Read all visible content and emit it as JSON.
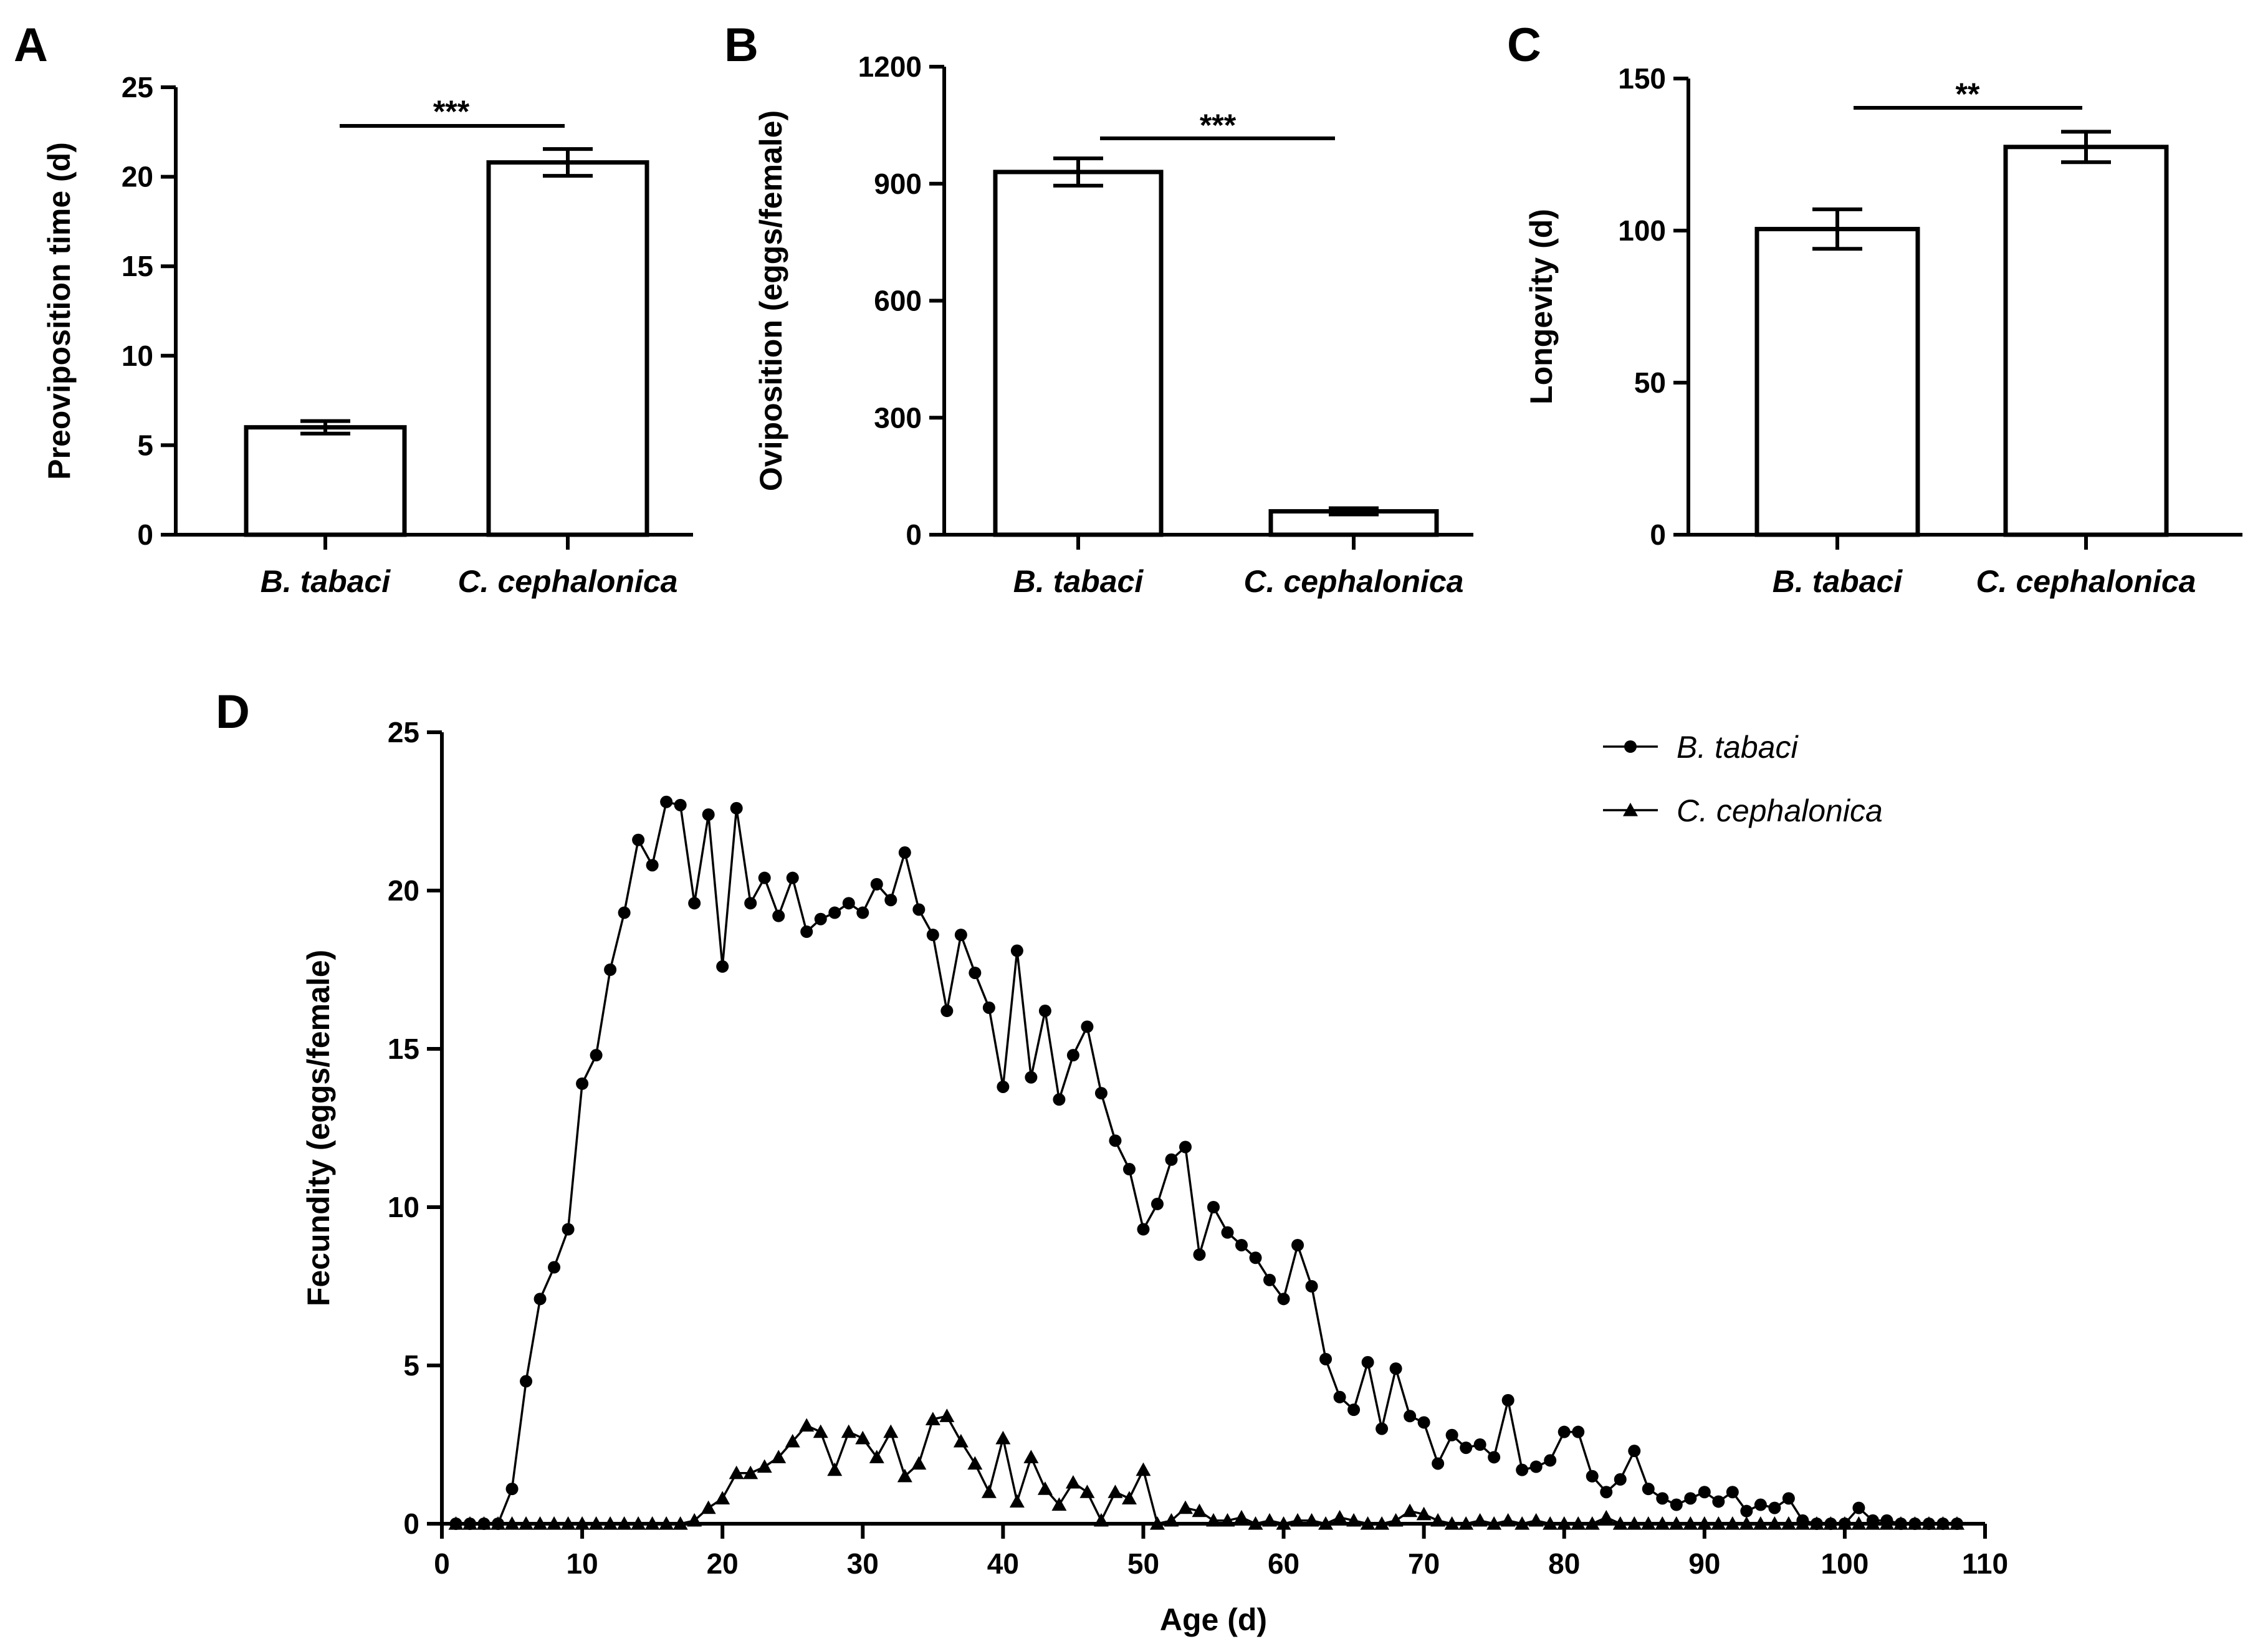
{
  "chart_data": [
    {
      "panel": "A",
      "type": "bar",
      "categories": [
        "B. tabaci",
        "C. cephalonica"
      ],
      "values": [
        6.0,
        20.8
      ],
      "errors": [
        0.35,
        0.75
      ],
      "ylabel": "Preoviposition time (d)",
      "xlabel": "",
      "ylim": [
        0,
        25
      ],
      "yticks": [
        0,
        5,
        10,
        15,
        20,
        25
      ],
      "significance": "***"
    },
    {
      "panel": "B",
      "type": "bar",
      "categories": [
        "B. tabaci",
        "C. cephalonica"
      ],
      "values": [
        930,
        60
      ],
      "errors": [
        35,
        8
      ],
      "ylabel": "Oviposition (eggs/female)",
      "xlabel": "",
      "ylim": [
        0,
        1200
      ],
      "yticks": [
        0,
        300,
        600,
        900,
        1200
      ],
      "significance": "***"
    },
    {
      "panel": "C",
      "type": "bar",
      "categories": [
        "B. tabaci",
        "C. cephalonica"
      ],
      "values": [
        100.5,
        127.5
      ],
      "errors": [
        6.5,
        5
      ],
      "ylabel": "Longevity (d)",
      "xlabel": "",
      "ylim": [
        0,
        150
      ],
      "yticks": [
        0,
        50,
        100,
        150
      ],
      "significance": "**"
    },
    {
      "panel": "D",
      "type": "line",
      "xlabel": "Age (d)",
      "ylabel": "Fecundity (eggs/female)",
      "xlim": [
        0,
        110
      ],
      "ylim": [
        0,
        25
      ],
      "xticks": [
        0,
        10,
        20,
        30,
        40,
        50,
        60,
        70,
        80,
        90,
        100,
        110
      ],
      "yticks": [
        0,
        5,
        10,
        15,
        20,
        25
      ],
      "legend_position": "top-right",
      "series": [
        {
          "name": "B. tabaci",
          "marker": "circle",
          "x": [
            1,
            2,
            3,
            4,
            5,
            6,
            7,
            8,
            9,
            10,
            11,
            12,
            13,
            14,
            15,
            16,
            17,
            18,
            19,
            20,
            21,
            22,
            23,
            24,
            25,
            26,
            27,
            28,
            29,
            30,
            31,
            32,
            33,
            34,
            35,
            36,
            37,
            38,
            39,
            40,
            41,
            42,
            43,
            44,
            45,
            46,
            47,
            48,
            49,
            50,
            51,
            52,
            53,
            54,
            55,
            56,
            57,
            58,
            59,
            60,
            61,
            62,
            63,
            64,
            65,
            66,
            67,
            68,
            69,
            70,
            71,
            72,
            73,
            74,
            75,
            76,
            77,
            78,
            79,
            80,
            81,
            82,
            83,
            84,
            85,
            86,
            87,
            88,
            89,
            90,
            91,
            92,
            93,
            94,
            95,
            96,
            97,
            98,
            99,
            100,
            101,
            102,
            103,
            104,
            105,
            106,
            107,
            108
          ],
          "values": [
            0,
            0,
            0,
            0,
            1.1,
            4.5,
            7.1,
            8.1,
            9.3,
            13.9,
            14.8,
            17.5,
            19.3,
            21.6,
            20.8,
            22.8,
            22.7,
            19.6,
            22.4,
            17.6,
            22.6,
            19.6,
            20.4,
            19.2,
            20.4,
            18.7,
            19.1,
            19.3,
            19.6,
            19.3,
            20.2,
            19.7,
            21.2,
            19.4,
            18.6,
            16.2,
            18.6,
            17.4,
            16.3,
            13.8,
            18.1,
            14.1,
            16.2,
            13.4,
            14.8,
            15.7,
            13.6,
            12.1,
            11.2,
            9.3,
            10.1,
            11.5,
            11.9,
            8.5,
            10.0,
            9.2,
            8.8,
            8.4,
            7.7,
            7.1,
            8.8,
            7.5,
            5.2,
            4.0,
            3.6,
            5.1,
            3.0,
            4.9,
            3.4,
            3.2,
            1.9,
            2.8,
            2.4,
            2.5,
            2.1,
            3.9,
            1.7,
            1.8,
            2.0,
            2.9,
            2.9,
            1.5,
            1.0,
            1.4,
            2.3,
            1.1,
            0.8,
            0.6,
            0.8,
            1.0,
            0.7,
            1.0,
            0.4,
            0.6,
            0.5,
            0.8,
            0.1,
            0,
            0,
            0,
            0.5,
            0.1,
            0.1,
            0,
            0,
            0,
            0,
            0
          ]
        },
        {
          "name": "C. cephalonica",
          "marker": "triangle",
          "x": [
            1,
            2,
            3,
            4,
            5,
            6,
            7,
            8,
            9,
            10,
            11,
            12,
            13,
            14,
            15,
            16,
            17,
            18,
            19,
            20,
            21,
            22,
            23,
            24,
            25,
            26,
            27,
            28,
            29,
            30,
            31,
            32,
            33,
            34,
            35,
            36,
            37,
            38,
            39,
            40,
            41,
            42,
            43,
            44,
            45,
            46,
            47,
            48,
            49,
            50,
            51,
            52,
            53,
            54,
            55,
            56,
            57,
            58,
            59,
            60,
            61,
            62,
            63,
            64,
            65,
            66,
            67,
            68,
            69,
            70,
            71,
            72,
            73,
            74,
            75,
            76,
            77,
            78,
            79,
            80,
            81,
            82,
            83,
            84,
            85,
            86,
            87,
            88,
            89,
            90,
            91,
            92,
            93,
            94,
            95,
            96,
            97,
            98,
            99,
            100,
            101,
            102,
            103,
            104,
            105,
            106,
            107,
            108
          ],
          "values": [
            0,
            0,
            0,
            0,
            0,
            0,
            0,
            0,
            0,
            0,
            0,
            0,
            0,
            0,
            0,
            0,
            0,
            0.1,
            0.5,
            0.8,
            1.6,
            1.6,
            1.8,
            2.1,
            2.6,
            3.1,
            2.9,
            1.7,
            2.9,
            2.7,
            2.1,
            2.9,
            1.5,
            1.9,
            3.3,
            3.4,
            2.6,
            1.9,
            1.0,
            2.7,
            0.7,
            2.1,
            1.1,
            0.6,
            1.3,
            1.0,
            0.1,
            1.0,
            0.8,
            1.7,
            0,
            0.1,
            0.5,
            0.4,
            0.1,
            0.1,
            0.2,
            0,
            0.1,
            0,
            0.1,
            0.1,
            0,
            0.2,
            0.1,
            0,
            0,
            0.1,
            0.4,
            0.3,
            0.1,
            0,
            0,
            0.1,
            0,
            0.1,
            0,
            0.1,
            0,
            0,
            0,
            0,
            0.2,
            0,
            0,
            0,
            0,
            0,
            0,
            0,
            0,
            0,
            0,
            0,
            0,
            0,
            0,
            0,
            0,
            0,
            0,
            0,
            0,
            0,
            0,
            0,
            0,
            0
          ]
        }
      ]
    }
  ]
}
